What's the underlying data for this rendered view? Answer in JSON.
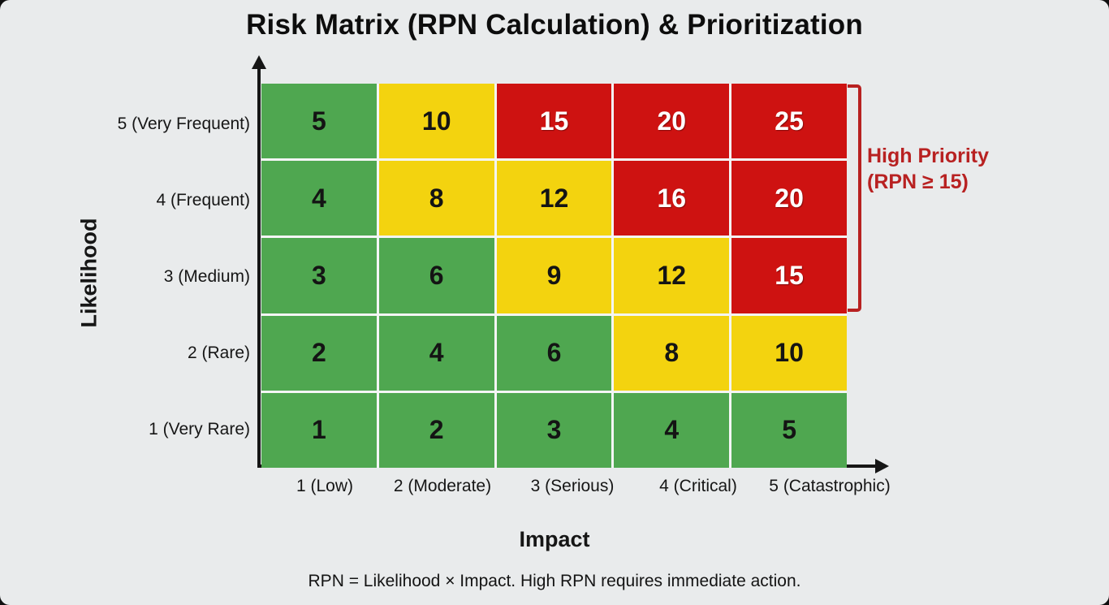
{
  "title": "Risk Matrix (RPN Calculation) & Prioritization",
  "colors": {
    "background": "#e9ebec",
    "green": "#4fa750",
    "yellow": "#f3d30f",
    "red": "#ce1211",
    "grid_line": "#f4f5f5",
    "cell_text_dark": "#141414",
    "cell_text_light": "#ffffff",
    "annotation_red": "#b82121",
    "axis": "#161616",
    "text": "#161616"
  },
  "chart_data": {
    "type": "heatmap",
    "title": "Risk Matrix (RPN Calculation) & Prioritization",
    "xlabel": "Impact",
    "ylabel": "Likelihood",
    "x_categories": [
      "1 (Low)",
      "2 (Moderate)",
      "3 (Serious)",
      "4 (Critical)",
      "5 (Catastrophic)"
    ],
    "y_categories": [
      "5 (Very Frequent)",
      "4 (Frequent)",
      "3 (Medium)",
      "2 (Rare)",
      "1 (Very Rare)"
    ],
    "rows": [
      {
        "likelihood": "5 (Very Frequent)",
        "values": [
          5,
          10,
          15,
          20,
          25
        ],
        "colors": [
          "green",
          "yellow",
          "red",
          "red",
          "red"
        ]
      },
      {
        "likelihood": "4 (Frequent)",
        "values": [
          4,
          8,
          12,
          16,
          20
        ],
        "colors": [
          "green",
          "yellow",
          "yellow",
          "red",
          "red"
        ]
      },
      {
        "likelihood": "3 (Medium)",
        "values": [
          3,
          6,
          9,
          12,
          15
        ],
        "colors": [
          "green",
          "green",
          "yellow",
          "yellow",
          "red"
        ]
      },
      {
        "likelihood": "2 (Rare)",
        "values": [
          2,
          4,
          6,
          8,
          10
        ],
        "colors": [
          "green",
          "green",
          "green",
          "yellow",
          "yellow"
        ]
      },
      {
        "likelihood": "1 (Very Rare)",
        "values": [
          1,
          2,
          3,
          4,
          5
        ],
        "colors": [
          "green",
          "green",
          "green",
          "green",
          "green"
        ]
      }
    ],
    "rpn_rule": "RPN = Likelihood × Impact",
    "legend_position": "right",
    "grid": false
  },
  "annotation": {
    "line1": "High Priority",
    "line2": "(RPN ≥ 15)"
  },
  "footnote": "RPN = Likelihood × Impact. High RPN requires immediate action."
}
